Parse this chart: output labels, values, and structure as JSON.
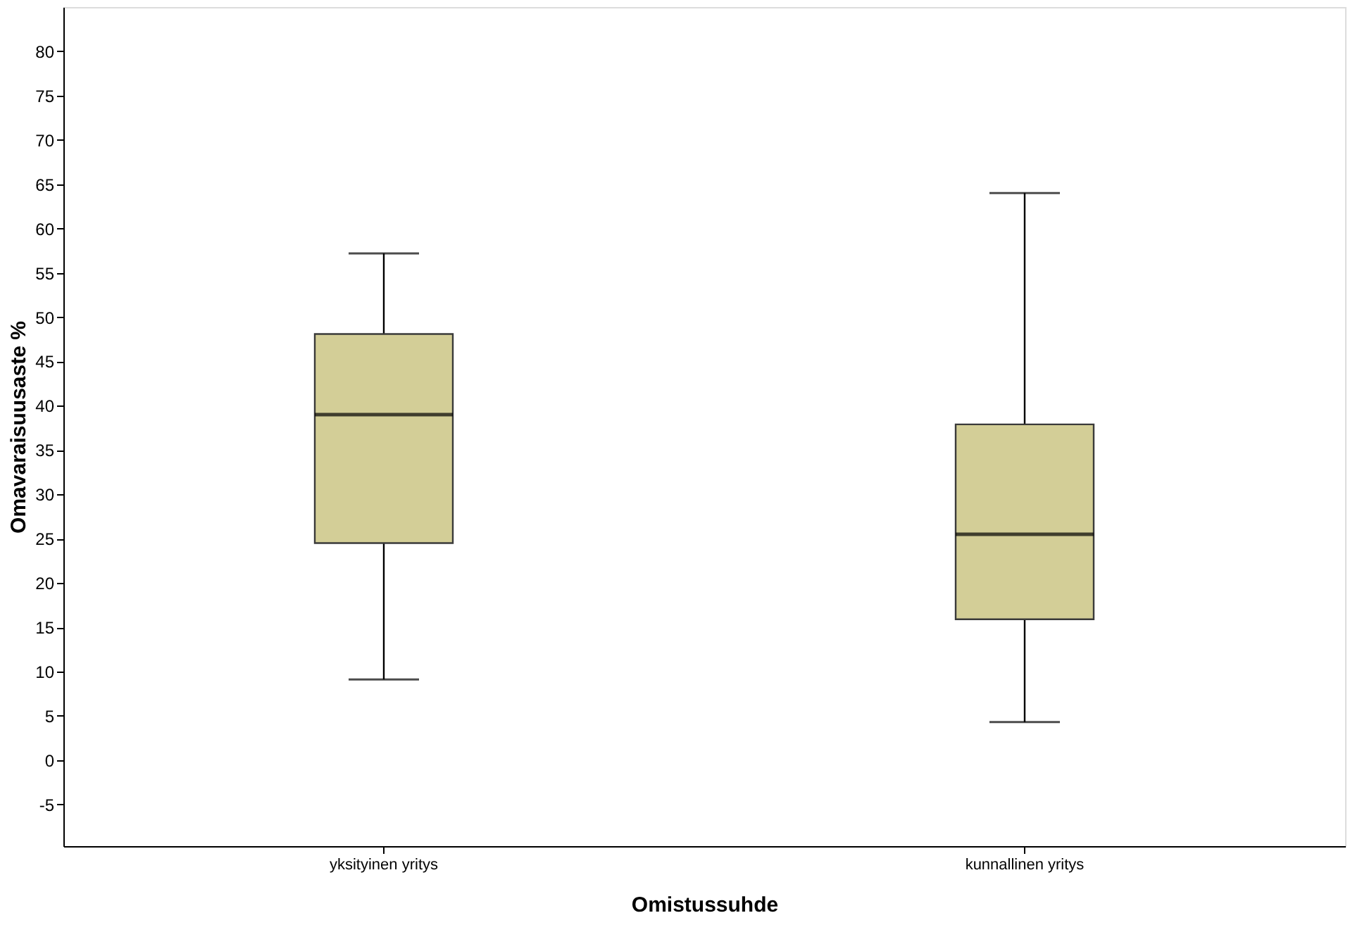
{
  "chart_data": {
    "type": "box",
    "xlabel": "Omistussuhde",
    "ylabel": "Omavaraisuusaste %",
    "categories": [
      "yksityinen yritys",
      "kunnallinen yritys"
    ],
    "boxes": [
      {
        "low": 9.1,
        "q1": 24.5,
        "median": 39.0,
        "q3": 48.1,
        "high": 57.2
      },
      {
        "low": 4.3,
        "q1": 15.9,
        "median": 25.5,
        "q3": 37.9,
        "high": 64.0
      }
    ],
    "color": "#d3ce97",
    "ylim": [
      -9.7,
      85
    ],
    "yticks": [
      -5,
      0,
      5,
      10,
      15,
      20,
      25,
      30,
      35,
      40,
      45,
      50,
      55,
      60,
      65,
      70,
      75,
      80
    ],
    "grid": false
  }
}
